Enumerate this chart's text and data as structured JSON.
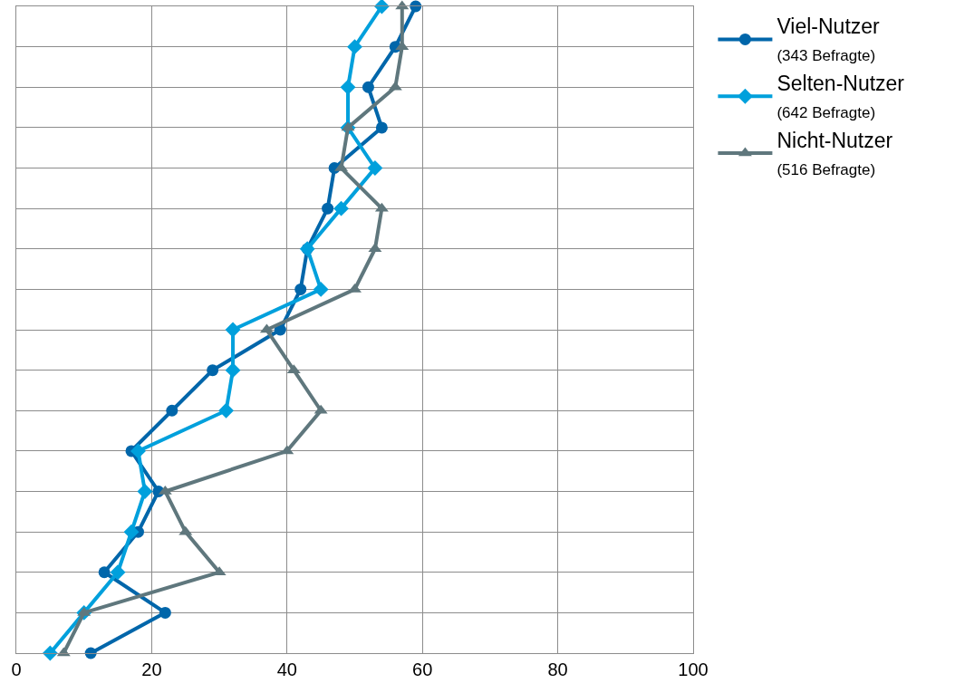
{
  "chart_data": {
    "type": "line",
    "orientation": "horizontal",
    "categories": [
      null,
      null,
      null,
      null,
      null,
      null,
      null,
      null,
      null,
      null,
      null,
      null,
      null,
      null,
      null,
      null,
      null
    ],
    "xlim": [
      0,
      100
    ],
    "xticks": [
      0,
      20,
      40,
      60,
      80,
      100
    ],
    "grid": true,
    "legend": "top right",
    "tick_labels": "x",
    "line_style": "solid",
    "series": [
      {
        "name": "Viel-Nutzer\n(343 Befragte)",
        "color": "#0066aa",
        "marker": "circle",
        "values": [
          59,
          56,
          52,
          54,
          47,
          46,
          43,
          42,
          39,
          29,
          23,
          17,
          21,
          18,
          13,
          22,
          11
        ]
      },
      {
        "name": "Selten-Nutzer\n(642 Befragte)",
        "color": "#00a0dc",
        "marker": "diamond",
        "values": [
          54,
          50,
          49,
          49,
          53,
          48,
          43,
          45,
          32,
          32,
          31,
          18,
          19,
          17,
          15,
          10,
          5
        ]
      },
      {
        "name": "Nicht-Nutzer\n(516 Befragte)",
        "color": "#5f777d",
        "marker": "triangle",
        "values": [
          57,
          57,
          56,
          49,
          48,
          54,
          53,
          50,
          37,
          41,
          45,
          40,
          22,
          25,
          30,
          10,
          7
        ]
      }
    ]
  }
}
